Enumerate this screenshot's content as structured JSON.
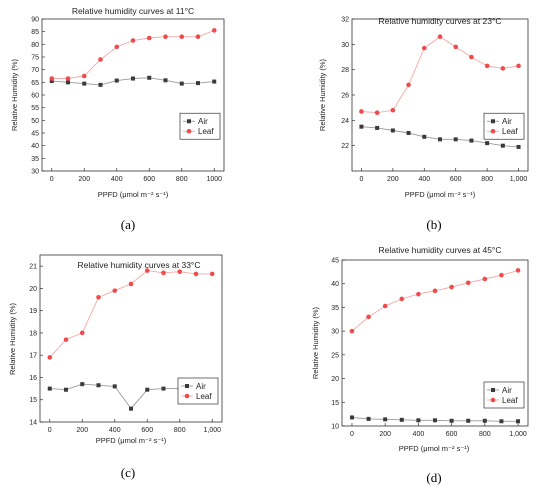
{
  "colors": {
    "air": "#3a3a3a",
    "leaf": "#f04a4a",
    "air_line": "#9a9a9a",
    "leaf_line": "#f3a9a9"
  },
  "chart_data": [
    {
      "type": "line",
      "panel": "(a)",
      "title": "Relative humidity curves at 11°C",
      "xlabel": "PPFD (μmol m⁻² s⁻¹)",
      "ylabel": "Relative Humidity (%)",
      "xlim": [
        -60,
        1060
      ],
      "ylim": [
        30,
        90
      ],
      "xticks": [
        0,
        200,
        400,
        600,
        800,
        1000
      ],
      "xtick_labels": [
        "0",
        "200",
        "400",
        "600",
        "800",
        "1000"
      ],
      "yticks": [
        30,
        35,
        40,
        45,
        50,
        55,
        60,
        65,
        70,
        75,
        80,
        85,
        90
      ],
      "ytick_labels": [
        "30",
        "35",
        "40",
        "45",
        "50",
        "55",
        "60",
        "65",
        "70",
        "75",
        "80",
        "85",
        "90"
      ],
      "legend": "right-middle",
      "x": [
        0,
        100,
        200,
        300,
        400,
        500,
        600,
        700,
        800,
        900,
        1000
      ],
      "series": [
        {
          "name": "Air",
          "values": [
            65.5,
            65,
            64.5,
            64,
            65.7,
            66.5,
            66.8,
            65.8,
            64.5,
            64.7,
            65.3
          ]
        },
        {
          "name": "Leaf",
          "values": [
            66.5,
            66.5,
            67.5,
            74,
            79,
            81.5,
            82.5,
            83,
            83,
            83,
            85.5
          ]
        }
      ]
    },
    {
      "type": "line",
      "panel": "(b)",
      "title": "Relative humidity curves at 23°C",
      "xlabel": "PPFD (μmol m⁻² s⁻¹)",
      "ylabel": "Relative Humidity (%)",
      "xlim": [
        -60,
        1060
      ],
      "ylim": [
        20,
        32
      ],
      "xticks": [
        0,
        200,
        400,
        600,
        800,
        1000
      ],
      "xtick_labels": [
        "0",
        "200",
        "400",
        "600",
        "800",
        "1,000"
      ],
      "yticks": [
        22,
        24,
        26,
        28,
        30,
        32
      ],
      "ytick_labels": [
        "22",
        "24",
        "26",
        "28",
        "30",
        "32"
      ],
      "legend": "right-middle",
      "x": [
        0,
        100,
        200,
        300,
        400,
        500,
        600,
        700,
        800,
        900,
        1000
      ],
      "series": [
        {
          "name": "Air",
          "values": [
            23.5,
            23.4,
            23.2,
            23.0,
            22.7,
            22.5,
            22.5,
            22.4,
            22.2,
            22.0,
            21.9
          ]
        },
        {
          "name": "Leaf",
          "values": [
            24.7,
            24.6,
            24.8,
            26.8,
            29.7,
            30.6,
            29.8,
            29.0,
            28.3,
            28.1,
            28.3
          ]
        }
      ]
    },
    {
      "type": "line",
      "panel": "(c)",
      "title": "Relative humidity curves at 33°C",
      "xlabel": "PPFD (μmol m⁻² s⁻¹)",
      "ylabel": "Relative Humidity (%)",
      "xlim": [
        -60,
        1060
      ],
      "ylim": [
        14,
        21.5
      ],
      "xticks": [
        0,
        200,
        400,
        600,
        800,
        1000
      ],
      "xtick_labels": [
        "0",
        "200",
        "400",
        "600",
        "800",
        "1,000"
      ],
      "yticks": [
        14,
        15,
        16,
        17,
        18,
        19,
        20,
        21
      ],
      "ytick_labels": [
        "14",
        "15",
        "16",
        "17",
        "18",
        "19",
        "20",
        "21"
      ],
      "legend": "right-bottom",
      "x": [
        0,
        100,
        200,
        300,
        400,
        500,
        600,
        700,
        800,
        900,
        1000
      ],
      "series": [
        {
          "name": "Air",
          "values": [
            15.5,
            15.45,
            15.7,
            15.65,
            15.6,
            14.6,
            15.45,
            15.5,
            15.5,
            15.55,
            15.6
          ]
        },
        {
          "name": "Leaf",
          "values": [
            16.9,
            17.7,
            18.0,
            19.6,
            19.9,
            20.2,
            20.8,
            20.7,
            20.75,
            20.65,
            20.65
          ]
        }
      ]
    },
    {
      "type": "line",
      "panel": "(d)",
      "title": "Relative humidity curves at 45°C",
      "xlabel": "PPFD (μmol m⁻² s⁻¹)",
      "ylabel": "Relative Humidity (%)",
      "xlim": [
        -60,
        1060
      ],
      "ylim": [
        10,
        45
      ],
      "xticks": [
        0,
        200,
        400,
        600,
        800,
        1000
      ],
      "xtick_labels": [
        "0",
        "200",
        "400",
        "600",
        "800",
        "1,000"
      ],
      "yticks": [
        10,
        15,
        20,
        25,
        30,
        35,
        40,
        45
      ],
      "ytick_labels": [
        "10",
        "15",
        "20",
        "25",
        "30",
        "35",
        "40",
        "45"
      ],
      "legend": "right-bottom",
      "x": [
        0,
        100,
        200,
        300,
        400,
        500,
        600,
        700,
        800,
        900,
        1000
      ],
      "series": [
        {
          "name": "Air",
          "values": [
            11.8,
            11.5,
            11.4,
            11.3,
            11.2,
            11.2,
            11.1,
            11.1,
            11.1,
            11.0,
            11.0
          ]
        },
        {
          "name": "Leaf",
          "values": [
            30.0,
            33.0,
            35.3,
            36.8,
            37.8,
            38.5,
            39.3,
            40.2,
            41.0,
            41.8,
            42.8
          ]
        }
      ]
    }
  ]
}
